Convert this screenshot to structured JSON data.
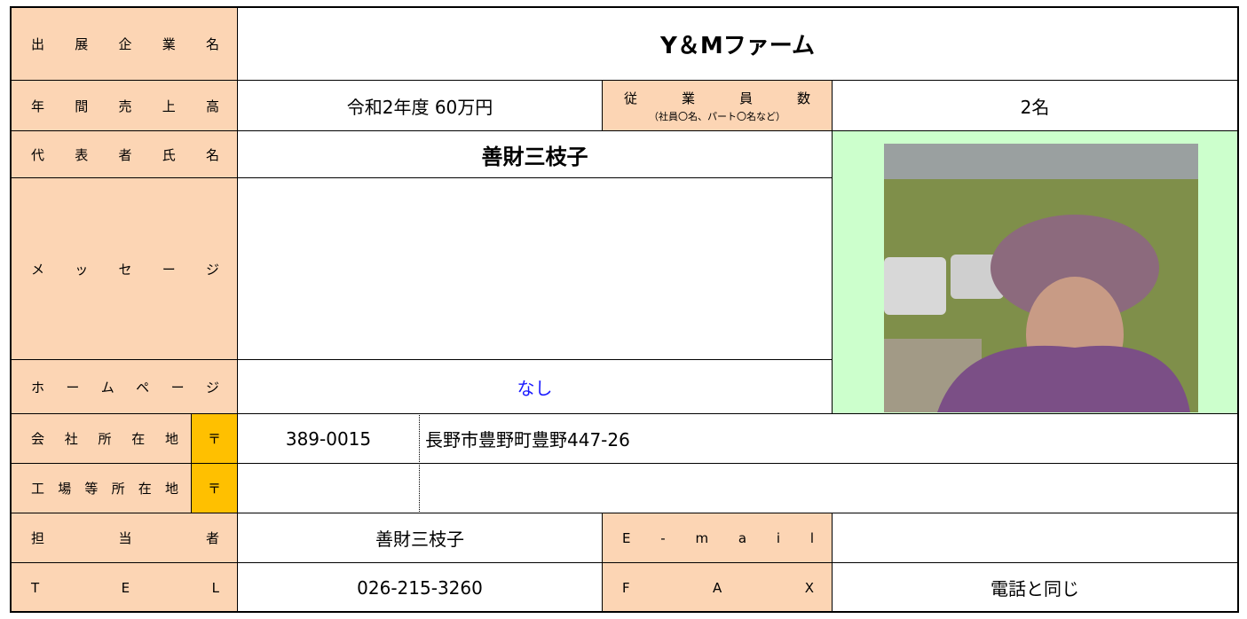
{
  "form": {
    "company": {
      "label": "出展企業名",
      "value": "Y＆Mファーム"
    },
    "sales": {
      "label": "年間売上高",
      "value": "令和2年度 60万円"
    },
    "employees": {
      "label": "従業員数",
      "note": "（社員〇名、パート〇名など）",
      "value": "2名"
    },
    "representative": {
      "label": "代表者氏名",
      "value": "善財三枝子"
    },
    "message": {
      "label": "メッセージ"
    },
    "homepage": {
      "label": "ホームページ",
      "value": "なし"
    },
    "office": {
      "label": "会社所在地",
      "zip_mark": "〒",
      "zip": "389-0015",
      "address": "長野市豊野町豊野447-26"
    },
    "factory": {
      "label": "工場等所在地",
      "zip_mark": "〒"
    },
    "contact": {
      "label": "担当者",
      "value": "善財三枝子"
    },
    "email": {
      "label": "E-mail"
    },
    "tel": {
      "label": "TEL",
      "value": "026-215-3260"
    },
    "fax": {
      "label": "FAX",
      "value": "電話と同じ"
    }
  }
}
